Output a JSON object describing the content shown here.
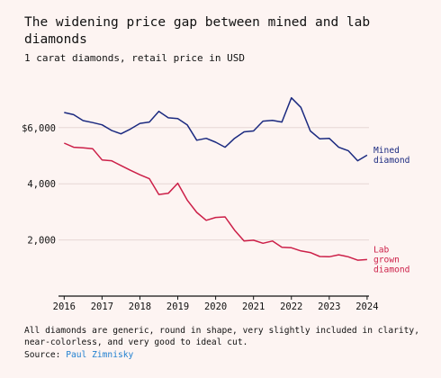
{
  "title": "The widening price gap between mined and lab diamonds",
  "subtitle": "1 carat diamonds, retail price in USD",
  "notes": "All diamonds are generic, round in shape, very slightly included in clarity, near-colorless, and very good to ideal cut.",
  "source_label": "Source:",
  "source_name": "Paul Zimnisky",
  "chart_data": {
    "type": "line",
    "title": "The widening price gap between mined and lab diamonds",
    "subtitle": "1 carat diamonds, retail price in USD",
    "x_range": [
      2015.85,
      2024.05
    ],
    "ylim": [
      0,
      7500
    ],
    "x_ticks": [
      2016,
      2017,
      2018,
      2019,
      2020,
      2021,
      2022,
      2023,
      2024
    ],
    "x_tick_labels": [
      "2016",
      "2017",
      "2018",
      "2019",
      "2020",
      "2021",
      "2022",
      "2023",
      "2024"
    ],
    "y_ticks": [
      2000,
      4000,
      6000
    ],
    "y_tick_labels": [
      "2,000",
      "4,000",
      "$6,000"
    ],
    "grid": "horizontal",
    "series": [
      {
        "name": "Mined diamond",
        "label_lines": [
          "Mined",
          "diamond"
        ],
        "color": "#1b2a80",
        "x": [
          2016.0,
          2016.25,
          2016.5,
          2016.75,
          2017.0,
          2017.25,
          2017.5,
          2017.75,
          2018.0,
          2018.25,
          2018.5,
          2018.75,
          2019.0,
          2019.25,
          2019.5,
          2019.75,
          2020.0,
          2020.25,
          2020.5,
          2020.75,
          2021.0,
          2021.25,
          2021.5,
          2021.75,
          2022.0,
          2022.25,
          2022.5,
          2022.75,
          2023.0,
          2023.25,
          2023.5,
          2023.75,
          2024.0
        ],
        "values": [
          6540,
          6460,
          6250,
          6180,
          6100,
          5900,
          5780,
          5950,
          6150,
          6200,
          6580,
          6350,
          6320,
          6100,
          5550,
          5620,
          5480,
          5300,
          5620,
          5850,
          5880,
          6230,
          6260,
          6200,
          7060,
          6720,
          5880,
          5600,
          5620,
          5300,
          5180,
          4820,
          5020
        ]
      },
      {
        "name": "Lab grown diamond",
        "label_lines": [
          "Lab",
          "grown",
          "diamond"
        ],
        "color": "#cc1f48",
        "x": [
          2016.0,
          2016.25,
          2016.5,
          2016.75,
          2017.0,
          2017.25,
          2017.5,
          2017.75,
          2018.0,
          2018.25,
          2018.5,
          2018.75,
          2019.0,
          2019.25,
          2019.5,
          2019.75,
          2020.0,
          2020.25,
          2020.5,
          2020.75,
          2021.0,
          2021.25,
          2021.5,
          2021.75,
          2022.0,
          2022.25,
          2022.5,
          2022.75,
          2023.0,
          2023.25,
          2023.5,
          2023.75,
          2024.0
        ],
        "values": [
          5450,
          5300,
          5280,
          5250,
          4850,
          4820,
          4650,
          4480,
          4320,
          4180,
          3620,
          3660,
          4020,
          3420,
          2980,
          2700,
          2800,
          2820,
          2350,
          1960,
          1990,
          1880,
          1960,
          1740,
          1720,
          1610,
          1550,
          1410,
          1400,
          1470,
          1400,
          1280,
          1300
        ]
      }
    ]
  }
}
